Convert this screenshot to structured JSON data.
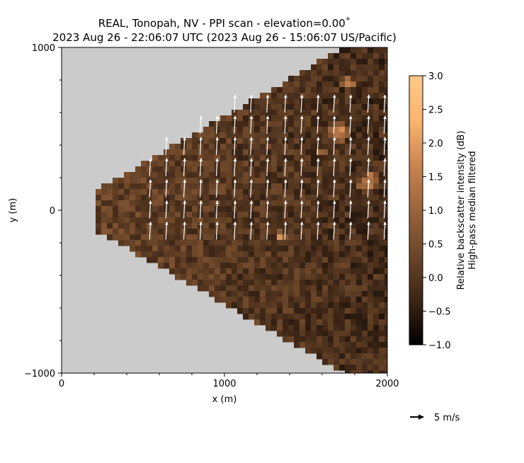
{
  "chart_data": {
    "type": "heatmap",
    "title_line1": "REAL, Tonopah, NV - PPI scan - elevation=0.00˚",
    "title_line2": "2023 Aug 26 - 22:06:07 UTC (2023 Aug 26 - 15:06:07 US/Pacific)",
    "xlabel": "x (m)",
    "ylabel": "y (m)",
    "xlim": [
      0,
      2000
    ],
    "ylim": [
      -1000,
      1000
    ],
    "x_ticks": [
      "0",
      "1000",
      "2000"
    ],
    "y_ticks": [
      "−1000",
      "0",
      "1000"
    ],
    "colorbar": {
      "label_line1": "Relative backscatter intensity (dB)",
      "label_line2": "High-pass median filtered",
      "range": [
        -1.0,
        3.0
      ],
      "ticks": [
        "−1.0",
        "−0.5",
        "0.0",
        "0.5",
        "1.0",
        "1.5",
        "2.0",
        "2.5",
        "3.0"
      ],
      "colors": [
        "#000000",
        "#3d2616",
        "#6b4629",
        "#99643c",
        "#c98450",
        "#fbb46f",
        "#ffc98a"
      ]
    },
    "scan_sector": {
      "min_range_m": 225,
      "max_range_m": 2000,
      "half_angle_deg": 30
    },
    "background_color": "#cbcbcb",
    "wind_vectors": {
      "color": "#ffffff",
      "x": [
        540,
        640,
        750,
        850,
        950,
        1060,
        1160,
        1260,
        1370,
        1470,
        1570,
        1670,
        1770,
        1880,
        1980
      ],
      "y": [
        -180,
        -50,
        80,
        210,
        340,
        470,
        600
      ],
      "u_ms": 0.5,
      "v_ms": 5.5
    },
    "legend": {
      "label": "5 m/s",
      "speed_ms": 5
    }
  }
}
